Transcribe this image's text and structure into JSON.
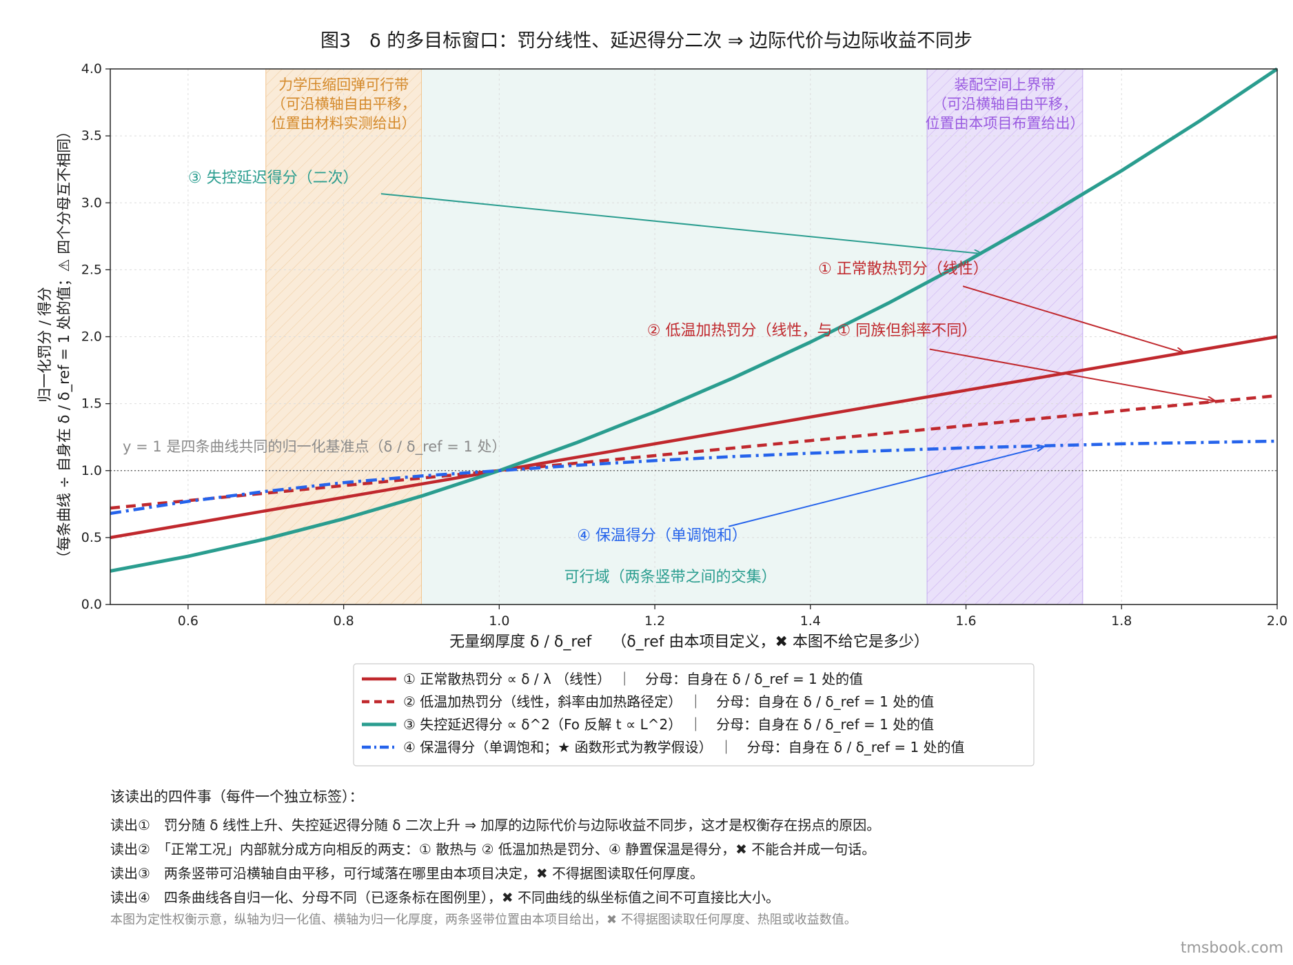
{
  "chart_data": {
    "type": "line",
    "title": "图3　δ 的多目标窗口：罚分线性、延迟得分二次 ⇒ 边际代价与边际收益不同步",
    "xlabel": "无量纲厚度  δ / δ_ref　 （δ_ref 由本项目定义，✖ 本图不给它是多少）",
    "ylabel_line1": "归一化罚分 / 得分",
    "ylabel_line2": "（每条曲线 ÷ 自身在 δ / δ_ref = 1 处的值；⚠ 四个分母互不相同）",
    "xlim": [
      0.5,
      2.0
    ],
    "ylim": [
      0.0,
      4.0
    ],
    "xticks": [
      "0.6",
      "0.8",
      "1.0",
      "1.2",
      "1.4",
      "1.6",
      "1.8",
      "2.0"
    ],
    "yticks": [
      "0.0",
      "0.5",
      "1.0",
      "1.5",
      "2.0",
      "2.5",
      "3.0",
      "3.5",
      "4.0"
    ],
    "grid": true,
    "legend_position": "bottom-center, below plot",
    "x": [
      0.5,
      0.6,
      0.7,
      0.8,
      0.9,
      1.0,
      1.1,
      1.2,
      1.3,
      1.4,
      1.5,
      1.6,
      1.7,
      1.8,
      1.9,
      2.0
    ],
    "series": [
      {
        "name": "① 正常散热罚分 ∝ δ / λ （线性）　｜　分母：自身在 δ / δ_ref = 1 处的值",
        "color": "#c0282d",
        "style": "solid",
        "values": [
          0.5,
          0.6,
          0.7,
          0.8,
          0.9,
          1.0,
          1.1,
          1.2,
          1.3,
          1.4,
          1.5,
          1.6,
          1.7,
          1.8,
          1.9,
          2.0
        ]
      },
      {
        "name": "② 低温加热罚分（线性，斜率由加热路径定）　｜　分母：自身在 δ / δ_ref = 1 处的值",
        "color": "#c0282d",
        "style": "dashed",
        "values": [
          0.72,
          0.776,
          0.832,
          0.888,
          0.944,
          1.0,
          1.056,
          1.112,
          1.168,
          1.224,
          1.28,
          1.336,
          1.392,
          1.448,
          1.504,
          1.56
        ]
      },
      {
        "name": "③ 失控延迟得分 ∝ δ^2（Fo 反解 t ∝ L^2）　｜　分母：自身在 δ / δ_ref = 1 处的值",
        "color": "#2a9d8f",
        "style": "solid",
        "values": [
          0.25,
          0.36,
          0.49,
          0.64,
          0.81,
          1.0,
          1.21,
          1.44,
          1.69,
          1.96,
          2.25,
          2.56,
          2.89,
          3.24,
          3.61,
          4.0
        ]
      },
      {
        "name": "④ 保温得分（单调饱和；★ 函数形式为教学假设）　｜　分母：自身在 δ / δ_ref = 1 处的值",
        "color": "#2563eb",
        "style": "dashdot",
        "values": [
          0.68,
          0.77,
          0.845,
          0.91,
          0.96,
          1.0,
          1.04,
          1.075,
          1.105,
          1.13,
          1.15,
          1.17,
          1.185,
          1.2,
          1.21,
          1.22
        ]
      }
    ],
    "bands": [
      {
        "x_range": [
          0.7,
          0.9
        ],
        "color": "#f2c58e",
        "label": "力学压缩回弹可行带\n（可沿横轴自由平移，\n位置由材料实测给出）",
        "label_color": "#d4892a"
      },
      {
        "x_range": [
          1.55,
          1.75
        ],
        "color": "#c4a9f0",
        "label": "装配空间上界带\n（可沿横轴自由平移，\n位置由本项目布置给出）",
        "label_color": "#9a5ae0"
      }
    ],
    "feasible_region": {
      "x_range": [
        0.9,
        1.55
      ],
      "label": "可行域（两条竖带之间的交集）",
      "label_color": "#2a9d8f"
    },
    "reference_line": {
      "y": 1.0,
      "label": "y = 1 是四条曲线共同的归一化基准点（δ / δ_ref = 1 处）"
    },
    "annotations": [
      {
        "text": "③ 失控延迟得分（二次）",
        "color": "#2a9d8f",
        "text_at": [
          0.6,
          3.15
        ],
        "arrow_to": [
          1.62,
          2.62
        ]
      },
      {
        "text": "① 正常散热罚分（线性）",
        "color": "#c0282d",
        "text_at": [
          1.41,
          2.47
        ],
        "arrow_to": [
          1.88,
          1.88
        ]
      },
      {
        "text": "② 低温加热罚分（线性，与 ① 同族但斜率不同）",
        "color": "#c0282d",
        "text_at": [
          1.19,
          2.01
        ],
        "arrow_to": [
          1.92,
          1.52
        ]
      },
      {
        "text": "④ 保温得分（单调饱和）",
        "color": "#2563eb",
        "text_at": [
          1.1,
          0.48
        ],
        "arrow_to": [
          1.7,
          1.18
        ]
      }
    ]
  },
  "readouts": {
    "heading": "该读出的四件事（每件一个独立标签）：",
    "items": [
      "读出①　罚分随 δ 线性上升、失控延迟得分随 δ 二次上升 ⇒ 加厚的边际代价与边际收益不同步，这才是权衡存在拐点的原因。",
      "读出②　「正常工况」内部就分成方向相反的两支：① 散热与 ② 低温加热是罚分、④ 静置保温是得分，✖ 不能合并成一句话。",
      "读出③　两条竖带可沿横轴自由平移，可行域落在哪里由本项目决定，✖ 不得据图读取任何厚度。",
      "读出④　四条曲线各自归一化、分母不同（已逐条标在图例里），✖ 不同曲线的纵坐标值之间不可直接比大小。"
    ],
    "note": "本图为定性权衡示意，纵轴为归一化值、横轴为归一化厚度，两条竖带位置由本项目给出，✖ 不得据图读取任何厚度、热阻或收益数值。"
  },
  "watermark": "tmsbook.com"
}
